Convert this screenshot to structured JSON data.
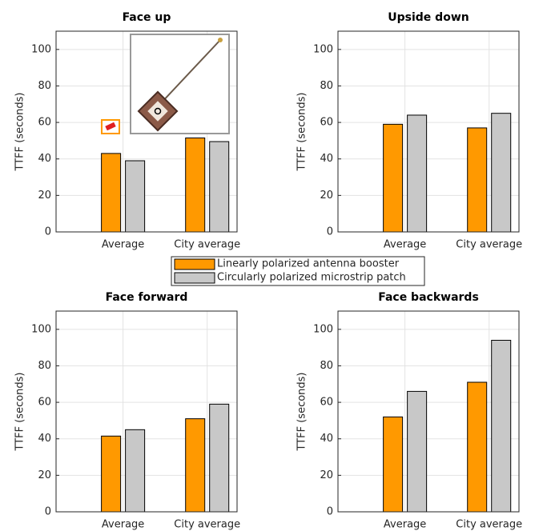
{
  "chart_data": [
    {
      "type": "bar",
      "title": "Face up",
      "y_label": "TTFF (seconds)",
      "categories": [
        "Average",
        "City average"
      ],
      "series": [
        {
          "name": "Linearly polarized antenna booster",
          "color": "#ff9900",
          "values": [
            43,
            51.5
          ]
        },
        {
          "name": "Circularly polarized microstrip patch",
          "color": "#c8c8c8",
          "values": [
            39,
            49.5
          ]
        }
      ],
      "ylim": [
        0,
        110
      ],
      "yticks": [
        0,
        20,
        40,
        60,
        80,
        100
      ],
      "grid": true
    },
    {
      "type": "bar",
      "title": "Upside down",
      "y_label": "TTFF (seconds)",
      "categories": [
        "Average",
        "City average"
      ],
      "series": [
        {
          "color": "#ff9900",
          "values": [
            59,
            57
          ]
        },
        {
          "color": "#c8c8c8",
          "values": [
            64,
            65
          ]
        }
      ],
      "ylim": [
        0,
        110
      ],
      "yticks": [
        0,
        20,
        40,
        60,
        80,
        100
      ],
      "grid": true
    },
    {
      "type": "bar",
      "title": "Face forward",
      "y_label": "TTFF (seconds)",
      "categories": [
        "Average",
        "City average"
      ],
      "series": [
        {
          "color": "#ff9900",
          "values": [
            41.5,
            51
          ]
        },
        {
          "color": "#c8c8c8",
          "values": [
            45,
            59
          ]
        }
      ],
      "ylim": [
        0,
        110
      ],
      "yticks": [
        0,
        20,
        40,
        60,
        80,
        100
      ],
      "grid": true
    },
    {
      "type": "bar",
      "title": "Face backwards",
      "y_label": "TTFF (seconds)",
      "categories": [
        "Average",
        "City average"
      ],
      "series": [
        {
          "color": "#ff9900",
          "values": [
            52,
            71
          ]
        },
        {
          "color": "#c8c8c8",
          "values": [
            66,
            94
          ]
        }
      ],
      "ylim": [
        0,
        110
      ],
      "yticks": [
        0,
        20,
        40,
        60,
        80,
        100
      ],
      "grid": true
    }
  ]
}
